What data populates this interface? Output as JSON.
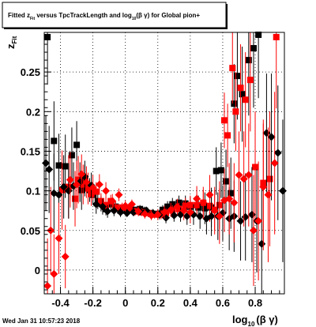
{
  "chart_data": {
    "type": "scatter",
    "title_parts": {
      "pre": "Fitted  z",
      "pre_sub": "Fit",
      "mid": " versus TpcTrackLength and log",
      "mid_sub": "10",
      "post": "(β γ) for Global pion+"
    },
    "xlabel_parts": {
      "main": "log",
      "sub": "10",
      "tail": "(β γ)"
    },
    "ylabel_parts": {
      "main": "z",
      "sub": "Fit"
    },
    "timestamp": "Wed Jan 31 10:57:23 2018",
    "xlim": [
      -0.5,
      0.98
    ],
    "ylim": [
      -0.03,
      0.3
    ],
    "x_ticks": [
      "-0.4",
      "-0.2",
      "0",
      "0.2",
      "0.4",
      "0.6",
      "0.8"
    ],
    "y_ticks": [
      "0",
      "0.05",
      "0.1",
      "0.15",
      "0.2",
      "0.25"
    ],
    "grid": true,
    "colors": {
      "black_series": "#000000",
      "red_series": "#ff0000"
    },
    "series": [
      {
        "marker": "square",
        "color": "#000000",
        "points": [
          {
            "x": -0.48,
            "y": 0.294,
            "e": 0.06
          },
          {
            "x": -0.44,
            "y": 0.163,
            "e": 0.05
          },
          {
            "x": -0.41,
            "y": 0.132,
            "e": 0.04
          },
          {
            "x": -0.37,
            "y": 0.131,
            "e": 0.04
          },
          {
            "x": -0.33,
            "y": 0.145,
            "e": 0.035
          },
          {
            "x": -0.3,
            "y": 0.158,
            "e": 0.03
          },
          {
            "x": -0.27,
            "y": 0.101,
            "e": 0.025
          },
          {
            "x": -0.25,
            "y": 0.113,
            "e": 0.02
          },
          {
            "x": -0.22,
            "y": 0.101,
            "e": 0.015
          },
          {
            "x": -0.2,
            "y": 0.095,
            "e": 0.012
          },
          {
            "x": -0.17,
            "y": 0.087,
            "e": 0.01
          },
          {
            "x": -0.15,
            "y": 0.084,
            "e": 0.01
          },
          {
            "x": -0.12,
            "y": 0.077,
            "e": 0.008
          },
          {
            "x": -0.09,
            "y": 0.083,
            "e": 0.007
          },
          {
            "x": -0.06,
            "y": 0.08,
            "e": 0.006
          },
          {
            "x": -0.03,
            "y": 0.075,
            "e": 0.005
          },
          {
            "x": 0.01,
            "y": 0.077,
            "e": 0.005
          },
          {
            "x": 0.05,
            "y": 0.076,
            "e": 0.005
          },
          {
            "x": 0.09,
            "y": 0.077,
            "e": 0.005
          },
          {
            "x": 0.12,
            "y": 0.075,
            "e": 0.005
          },
          {
            "x": 0.16,
            "y": 0.071,
            "e": 0.005
          },
          {
            "x": 0.2,
            "y": 0.071,
            "e": 0.005
          },
          {
            "x": 0.23,
            "y": 0.076,
            "e": 0.006
          },
          {
            "x": 0.26,
            "y": 0.08,
            "e": 0.007
          },
          {
            "x": 0.29,
            "y": 0.083,
            "e": 0.008
          },
          {
            "x": 0.33,
            "y": 0.085,
            "e": 0.009
          },
          {
            "x": 0.37,
            "y": 0.084,
            "e": 0.01
          },
          {
            "x": 0.4,
            "y": 0.08,
            "e": 0.012
          },
          {
            "x": 0.45,
            "y": 0.079,
            "e": 0.015
          },
          {
            "x": 0.49,
            "y": 0.078,
            "e": 0.02
          },
          {
            "x": 0.53,
            "y": 0.079,
            "e": 0.025
          },
          {
            "x": 0.56,
            "y": 0.125,
            "e": 0.03
          },
          {
            "x": 0.59,
            "y": 0.126,
            "e": 0.035
          },
          {
            "x": 0.62,
            "y": 0.112,
            "e": 0.04
          },
          {
            "x": 0.65,
            "y": 0.097,
            "e": 0.045
          },
          {
            "x": 0.67,
            "y": 0.21,
            "e": 0.05
          },
          {
            "x": 0.69,
            "y": 0.245,
            "e": 0.055
          },
          {
            "x": 0.72,
            "y": 0.222,
            "e": 0.06
          },
          {
            "x": 0.76,
            "y": 0.265,
            "e": 0.07
          },
          {
            "x": 0.79,
            "y": 0.28,
            "e": 0.075
          },
          {
            "x": 0.82,
            "y": 0.297,
            "e": 0.08
          }
        ]
      },
      {
        "marker": "square",
        "color": "#ff0000",
        "points": [
          {
            "x": -0.39,
            "y": 0.101,
            "e": 0.05
          },
          {
            "x": -0.35,
            "y": 0.105,
            "e": 0.04
          },
          {
            "x": -0.31,
            "y": 0.09,
            "e": 0.035
          },
          {
            "x": -0.29,
            "y": 0.114,
            "e": 0.03
          },
          {
            "x": -0.26,
            "y": 0.108,
            "e": 0.025
          },
          {
            "x": -0.23,
            "y": 0.103,
            "e": 0.02
          },
          {
            "x": -0.21,
            "y": 0.096,
            "e": 0.015
          },
          {
            "x": -0.18,
            "y": 0.099,
            "e": 0.012
          },
          {
            "x": -0.15,
            "y": 0.087,
            "e": 0.01
          },
          {
            "x": -0.12,
            "y": 0.082,
            "e": 0.009
          },
          {
            "x": -0.09,
            "y": 0.087,
            "e": 0.008
          },
          {
            "x": -0.06,
            "y": 0.079,
            "e": 0.007
          },
          {
            "x": -0.02,
            "y": 0.079,
            "e": 0.006
          },
          {
            "x": 0.02,
            "y": 0.078,
            "e": 0.005
          },
          {
            "x": 0.06,
            "y": 0.074,
            "e": 0.005
          },
          {
            "x": 0.1,
            "y": 0.073,
            "e": 0.005
          },
          {
            "x": 0.14,
            "y": 0.072,
            "e": 0.005
          },
          {
            "x": 0.18,
            "y": 0.07,
            "e": 0.005
          },
          {
            "x": 0.22,
            "y": 0.07,
            "e": 0.006
          },
          {
            "x": 0.25,
            "y": 0.072,
            "e": 0.006
          },
          {
            "x": 0.29,
            "y": 0.075,
            "e": 0.007
          },
          {
            "x": 0.33,
            "y": 0.077,
            "e": 0.008
          },
          {
            "x": 0.37,
            "y": 0.081,
            "e": 0.01
          },
          {
            "x": 0.4,
            "y": 0.082,
            "e": 0.012
          },
          {
            "x": 0.44,
            "y": 0.082,
            "e": 0.014
          },
          {
            "x": 0.48,
            "y": 0.085,
            "e": 0.016
          },
          {
            "x": 0.52,
            "y": 0.081,
            "e": 0.02
          },
          {
            "x": 0.55,
            "y": 0.076,
            "e": 0.025
          },
          {
            "x": 0.58,
            "y": 0.082,
            "e": 0.03
          },
          {
            "x": 0.61,
            "y": 0.189,
            "e": 0.035
          },
          {
            "x": 0.63,
            "y": 0.17,
            "e": 0.04
          },
          {
            "x": 0.66,
            "y": 0.255,
            "e": 0.045
          },
          {
            "x": 0.68,
            "y": 0.2,
            "e": 0.05
          },
          {
            "x": 0.71,
            "y": 0.23,
            "e": 0.055
          },
          {
            "x": 0.74,
            "y": 0.215,
            "e": 0.06
          },
          {
            "x": 0.77,
            "y": 0.24,
            "e": 0.065
          },
          {
            "x": 0.8,
            "y": 0.13,
            "e": 0.07
          },
          {
            "x": 0.85,
            "y": 0.11,
            "e": 0.08
          },
          {
            "x": 0.89,
            "y": 0.115,
            "e": 0.085
          },
          {
            "x": 0.93,
            "y": 0.294,
            "e": 0.09
          }
        ]
      },
      {
        "marker": "diamond",
        "color": "#000000",
        "points": [
          {
            "x": -0.49,
            "y": 0.135,
            "e": 0.06
          },
          {
            "x": -0.47,
            "y": 0.127,
            "e": 0.055
          },
          {
            "x": -0.44,
            "y": 0.097,
            "e": 0.05
          },
          {
            "x": -0.41,
            "y": 0.095,
            "e": 0.045
          },
          {
            "x": -0.38,
            "y": 0.105,
            "e": 0.04
          },
          {
            "x": -0.35,
            "y": 0.1,
            "e": 0.035
          },
          {
            "x": -0.32,
            "y": 0.106,
            "e": 0.03
          },
          {
            "x": -0.28,
            "y": 0.111,
            "e": 0.025
          },
          {
            "x": -0.25,
            "y": 0.118,
            "e": 0.02
          },
          {
            "x": -0.21,
            "y": 0.107,
            "e": 0.016
          },
          {
            "x": -0.18,
            "y": 0.083,
            "e": 0.012
          },
          {
            "x": -0.14,
            "y": 0.08,
            "e": 0.01
          },
          {
            "x": -0.11,
            "y": 0.074,
            "e": 0.008
          },
          {
            "x": -0.07,
            "y": 0.075,
            "e": 0.007
          },
          {
            "x": -0.03,
            "y": 0.073,
            "e": 0.006
          },
          {
            "x": 0.01,
            "y": 0.072,
            "e": 0.005
          },
          {
            "x": 0.05,
            "y": 0.073,
            "e": 0.005
          },
          {
            "x": 0.09,
            "y": 0.074,
            "e": 0.005
          },
          {
            "x": 0.13,
            "y": 0.075,
            "e": 0.005
          },
          {
            "x": 0.17,
            "y": 0.072,
            "e": 0.005
          },
          {
            "x": 0.21,
            "y": 0.07,
            "e": 0.006
          },
          {
            "x": 0.25,
            "y": 0.066,
            "e": 0.007
          },
          {
            "x": 0.3,
            "y": 0.069,
            "e": 0.008
          },
          {
            "x": 0.34,
            "y": 0.07,
            "e": 0.009
          },
          {
            "x": 0.38,
            "y": 0.068,
            "e": 0.011
          },
          {
            "x": 0.42,
            "y": 0.07,
            "e": 0.013
          },
          {
            "x": 0.46,
            "y": 0.068,
            "e": 0.016
          },
          {
            "x": 0.5,
            "y": 0.065,
            "e": 0.02
          },
          {
            "x": 0.53,
            "y": 0.068,
            "e": 0.025
          },
          {
            "x": 0.57,
            "y": 0.068,
            "e": 0.03
          },
          {
            "x": 0.6,
            "y": 0.072,
            "e": 0.035
          },
          {
            "x": 0.64,
            "y": 0.065,
            "e": 0.04
          },
          {
            "x": 0.67,
            "y": 0.068,
            "e": 0.045
          },
          {
            "x": 0.71,
            "y": 0.062,
            "e": 0.05
          },
          {
            "x": 0.74,
            "y": 0.067,
            "e": 0.055
          },
          {
            "x": 0.78,
            "y": 0.07,
            "e": 0.06
          },
          {
            "x": 0.81,
            "y": 0.062,
            "e": 0.065
          },
          {
            "x": 0.84,
            "y": 0.033,
            "e": 0.07
          },
          {
            "x": 0.87,
            "y": 0.173,
            "e": 0.075
          },
          {
            "x": 0.9,
            "y": 0.168,
            "e": 0.08
          },
          {
            "x": 0.94,
            "y": 0.148,
            "e": 0.085
          },
          {
            "x": 0.97,
            "y": 0.1,
            "e": 0.09
          }
        ]
      },
      {
        "marker": "diamond",
        "color": "#ff0000",
        "points": [
          {
            "x": -0.48,
            "y": -0.02,
            "e": 0.06
          },
          {
            "x": -0.46,
            "y": 0.05,
            "e": 0.055
          },
          {
            "x": -0.44,
            "y": -0.005,
            "e": 0.05
          },
          {
            "x": -0.41,
            "y": 0.04,
            "e": 0.045
          },
          {
            "x": -0.37,
            "y": 0.017,
            "e": 0.04
          },
          {
            "x": -0.34,
            "y": 0.114,
            "e": 0.035
          },
          {
            "x": -0.3,
            "y": 0.108,
            "e": 0.03
          },
          {
            "x": -0.27,
            "y": 0.121,
            "e": 0.025
          },
          {
            "x": -0.24,
            "y": 0.111,
            "e": 0.02
          },
          {
            "x": -0.2,
            "y": 0.104,
            "e": 0.016
          },
          {
            "x": -0.16,
            "y": 0.108,
            "e": 0.013
          },
          {
            "x": -0.12,
            "y": 0.1,
            "e": 0.011
          },
          {
            "x": -0.08,
            "y": 0.087,
            "e": 0.009
          },
          {
            "x": -0.04,
            "y": 0.095,
            "e": 0.008
          },
          {
            "x": 0.0,
            "y": 0.081,
            "e": 0.007
          },
          {
            "x": 0.04,
            "y": 0.083,
            "e": 0.006
          },
          {
            "x": 0.08,
            "y": 0.074,
            "e": 0.006
          },
          {
            "x": 0.12,
            "y": 0.071,
            "e": 0.006
          },
          {
            "x": 0.16,
            "y": 0.069,
            "e": 0.006
          },
          {
            "x": 0.2,
            "y": 0.07,
            "e": 0.007
          },
          {
            "x": 0.24,
            "y": 0.073,
            "e": 0.008
          },
          {
            "x": 0.28,
            "y": 0.076,
            "e": 0.009
          },
          {
            "x": 0.32,
            "y": 0.08,
            "e": 0.01
          },
          {
            "x": 0.36,
            "y": 0.075,
            "e": 0.012
          },
          {
            "x": 0.4,
            "y": 0.073,
            "e": 0.014
          },
          {
            "x": 0.44,
            "y": 0.09,
            "e": 0.016
          },
          {
            "x": 0.48,
            "y": 0.085,
            "e": 0.02
          },
          {
            "x": 0.52,
            "y": 0.095,
            "e": 0.025
          },
          {
            "x": 0.55,
            "y": 0.075,
            "e": 0.03
          },
          {
            "x": 0.58,
            "y": 0.068,
            "e": 0.035
          },
          {
            "x": 0.61,
            "y": 0.088,
            "e": 0.04
          },
          {
            "x": 0.64,
            "y": 0.09,
            "e": 0.045
          },
          {
            "x": 0.67,
            "y": 0.085,
            "e": 0.05
          },
          {
            "x": 0.7,
            "y": 0.12,
            "e": 0.055
          },
          {
            "x": 0.73,
            "y": 0.115,
            "e": 0.06
          },
          {
            "x": 0.76,
            "y": 0.12,
            "e": 0.065
          },
          {
            "x": 0.79,
            "y": 0.05,
            "e": 0.07
          },
          {
            "x": 0.82,
            "y": 0.062,
            "e": 0.075
          },
          {
            "x": 0.85,
            "y": 0.105,
            "e": 0.08
          },
          {
            "x": 0.88,
            "y": 0.095,
            "e": 0.085
          },
          {
            "x": 0.92,
            "y": 0.135,
            "e": 0.09
          }
        ]
      }
    ]
  }
}
